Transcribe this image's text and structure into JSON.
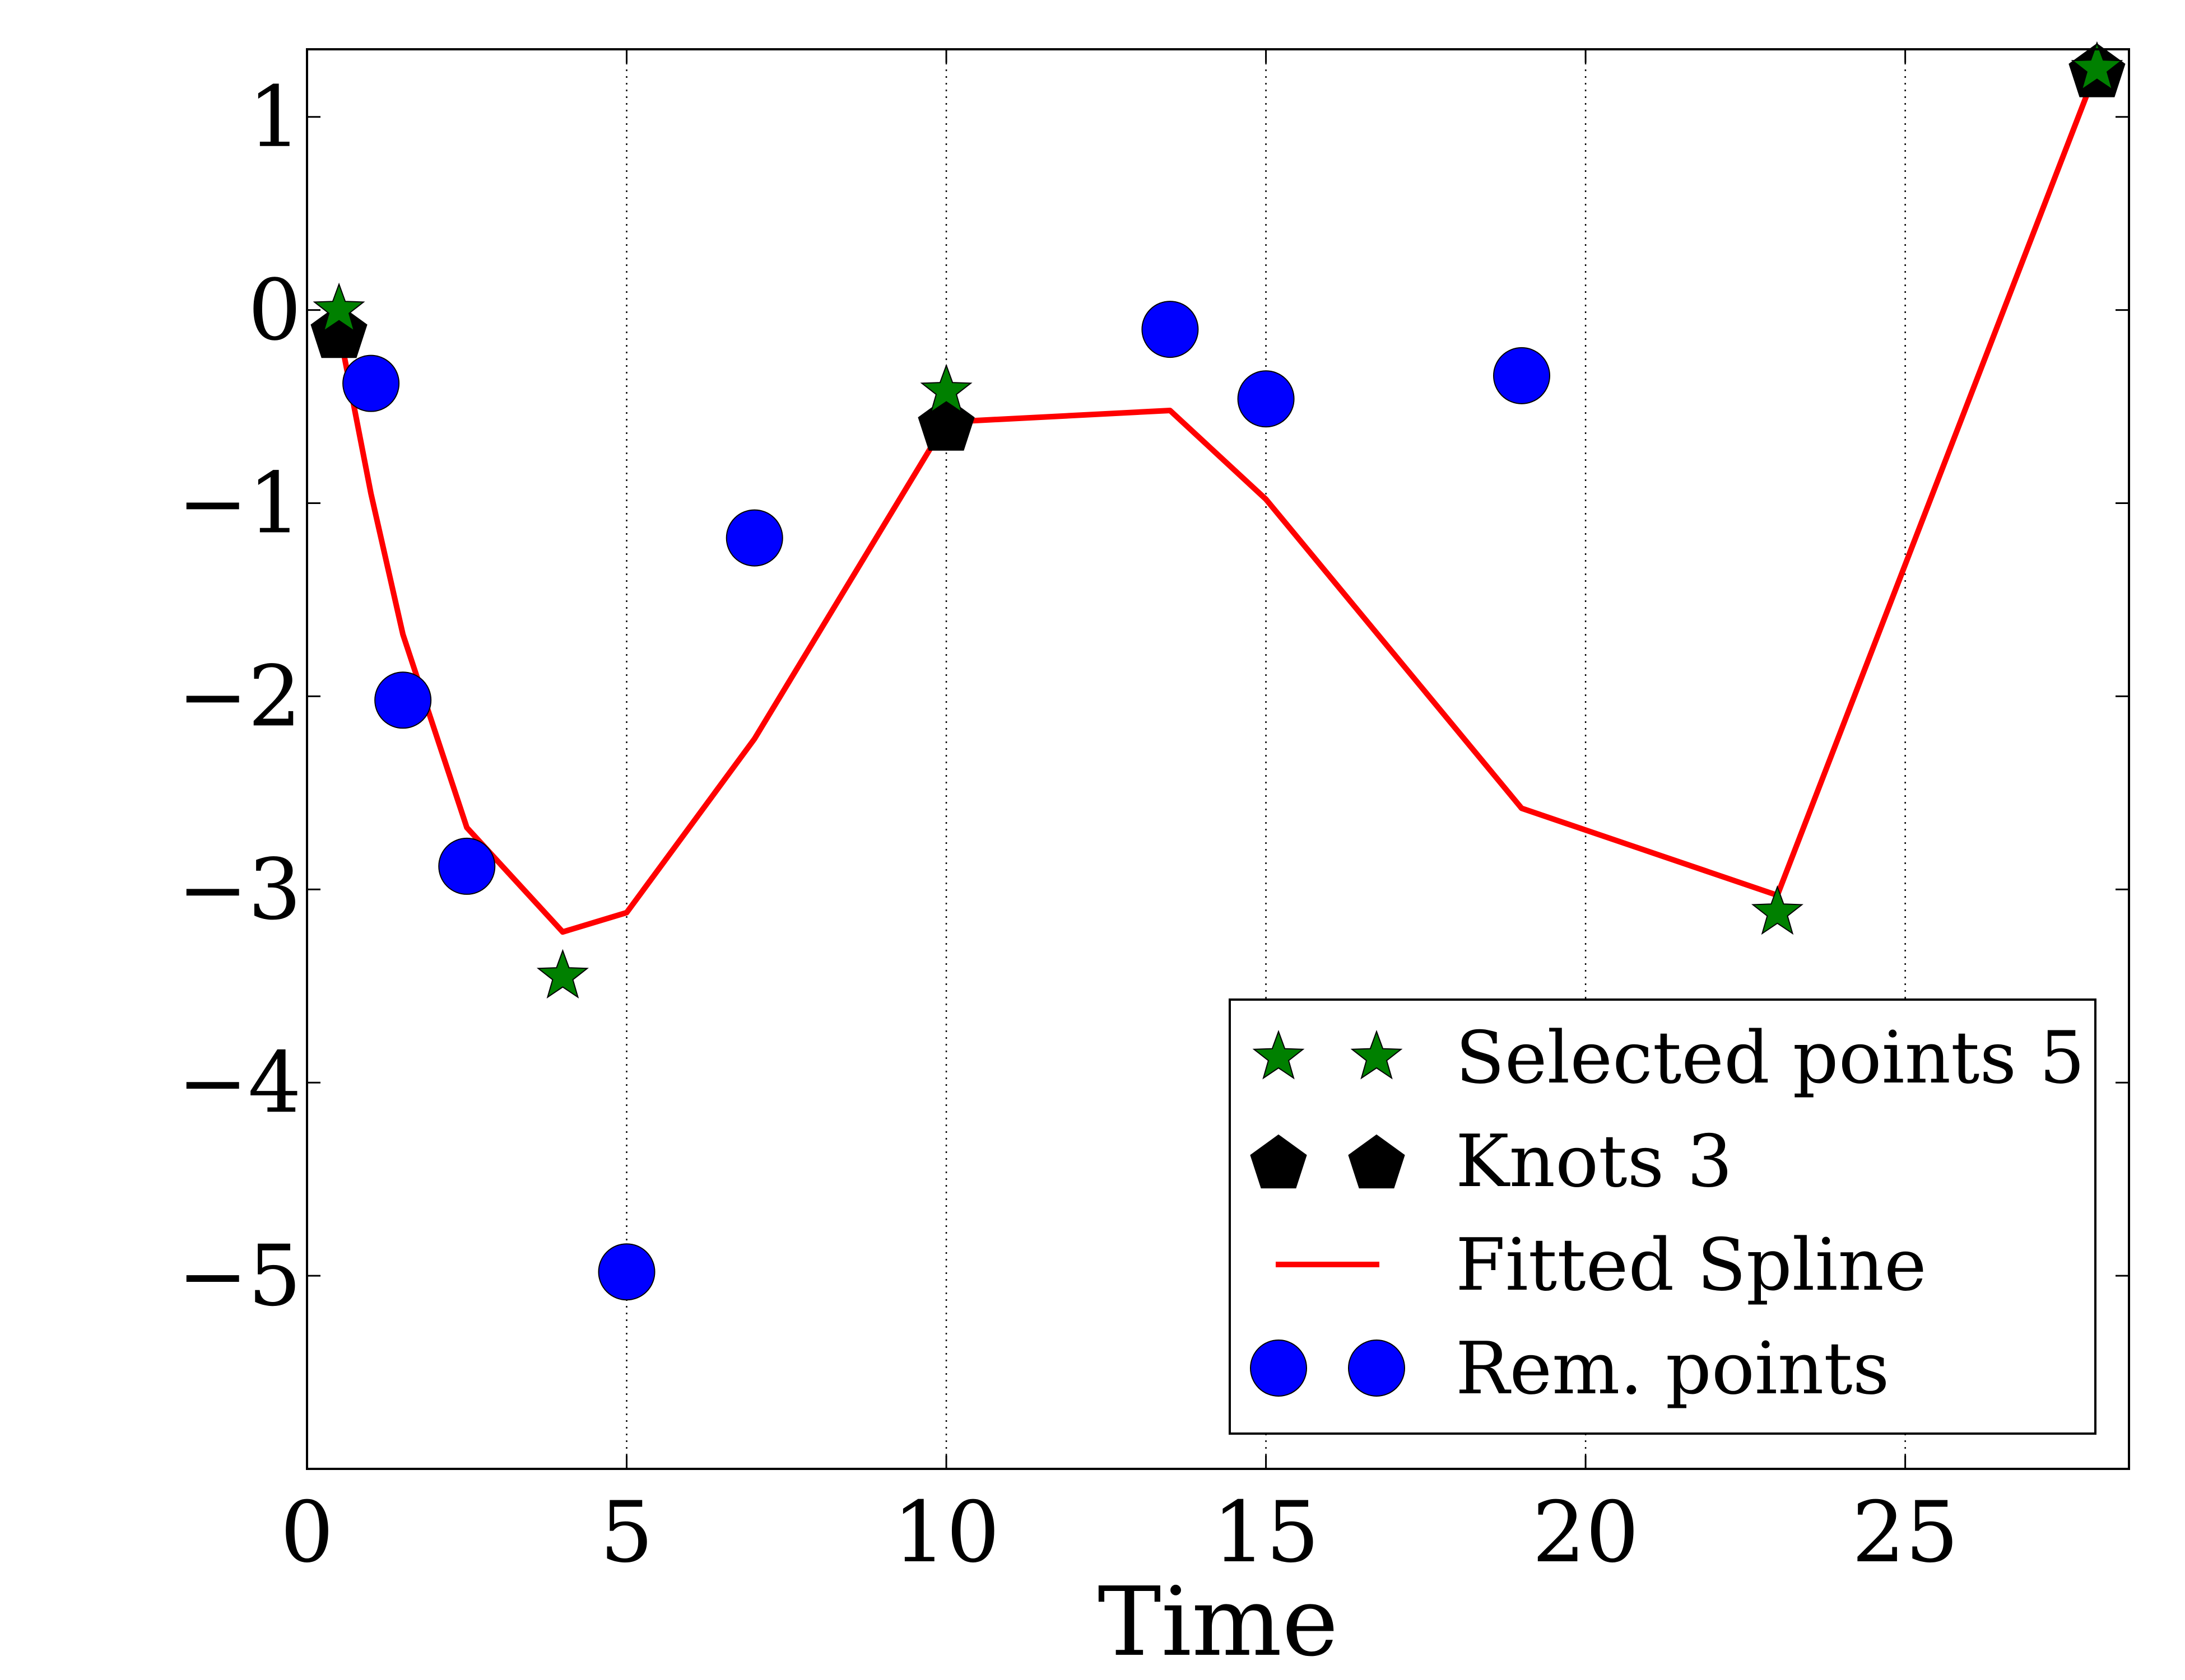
{
  "chart_data": {
    "type": "scatter",
    "title": "",
    "xlabel": "Time",
    "ylabel": "",
    "xlim": [
      0,
      28.5
    ],
    "ylim": [
      -6,
      1.35
    ],
    "xticks": [
      0,
      5,
      10,
      15,
      20,
      25
    ],
    "xtick_labels": [
      "0",
      "5",
      "10",
      "15",
      "20",
      "25"
    ],
    "yticks": [
      1,
      0,
      -1,
      -2,
      -3,
      -4,
      -5
    ],
    "ytick_labels": [
      "1",
      "0",
      "−1",
      "−2",
      "−3",
      "−4",
      "−5"
    ],
    "grid": "vertical dotted at x ticks",
    "legend_position": "lower-right",
    "series": [
      {
        "name": "Selected points 5",
        "marker": "star",
        "color": "#008000",
        "x": [
          0.5,
          4,
          10,
          23,
          28
        ],
        "y": [
          0,
          -3.45,
          -0.42,
          -3.12,
          1.25
        ]
      },
      {
        "name": "Knots 3",
        "marker": "pentagon",
        "color": "#000000",
        "x": [
          0.5,
          10,
          28
        ],
        "y": [
          -0.1,
          -0.58,
          1.25
        ]
      },
      {
        "name": "Fitted Spline",
        "marker": "line",
        "color": "#ff0000",
        "x": [
          0.5,
          1,
          1.5,
          2.5,
          4,
          5,
          7,
          10,
          13.5,
          15,
          19,
          23,
          28
        ],
        "y": [
          -0.1,
          -0.95,
          -1.68,
          -2.68,
          -3.22,
          -3.12,
          -2.22,
          -0.58,
          -0.52,
          -0.98,
          -2.58,
          -3.03,
          1.25
        ]
      },
      {
        "name": "Rem. points",
        "marker": "circle",
        "color": "#0000ff",
        "x": [
          1,
          1.5,
          2.5,
          5,
          7,
          13.5,
          15,
          19
        ],
        "y": [
          -0.38,
          -2.02,
          -2.88,
          -4.98,
          -1.18,
          -0.1,
          -0.46,
          -0.34
        ]
      }
    ]
  }
}
